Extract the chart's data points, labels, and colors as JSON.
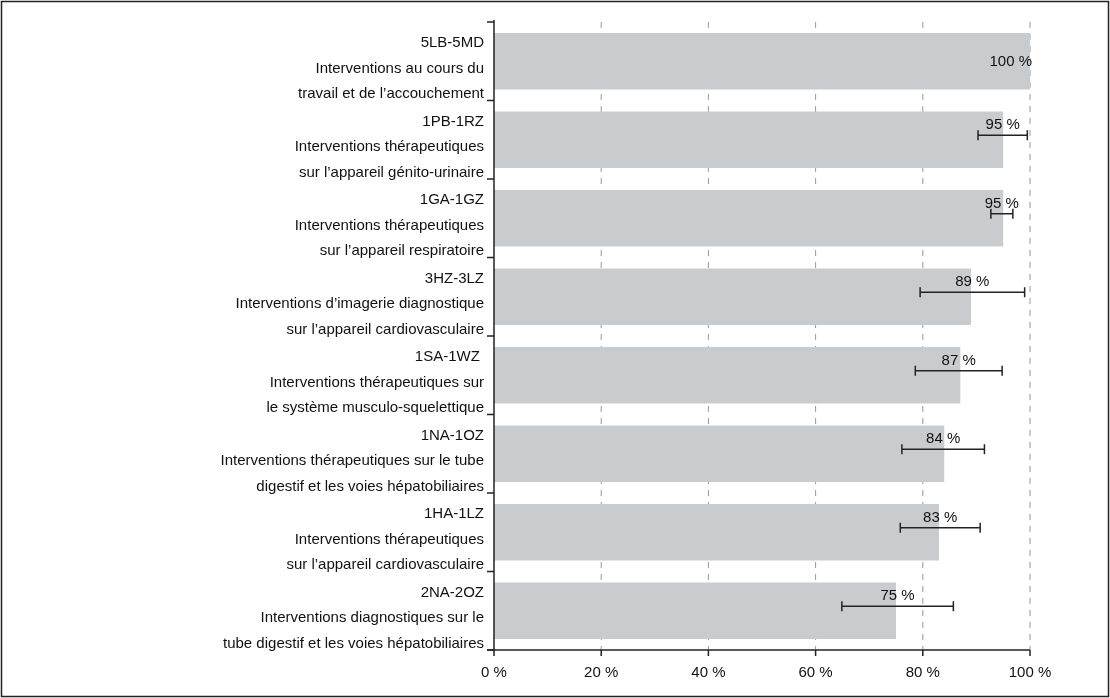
{
  "chart_data": {
    "type": "bar",
    "orientation": "horizontal",
    "categories": [
      "5LB-5MD\nInterventions au cours du\ntravail et de l’accouchement",
      "1PB-1RZ\nInterventions thérapeutiques\nsur l’appareil génito-urinaire",
      "1GA-1GZ\nInterventions thérapeutiques\nsur l’appareil respiratoire",
      "3HZ-3LZ\nInterventions d’imagerie diagnostique\nsur l’appareil cardiovasculaire",
      "1SA-1WZ \nInterventions thérapeutiques sur\nle système musculo-squelettique",
      "1NA-1OZ\nInterventions thérapeutiques sur le tube\ndigestif et les voies hépatobiliaires",
      "1HA-1LZ\nInterventions thérapeutiques\nsur l’appareil cardiovasculaire",
      "2NA-2OZ\nInterventions diagnostiques sur le\ntube digestif et les voies hépatobiliaires"
    ],
    "values": [
      100,
      95,
      95,
      89,
      87,
      84,
      83,
      75
    ],
    "value_labels": [
      "100 %",
      "95 %",
      "95 %",
      "89 %",
      "87 %",
      "84 %",
      "83 %",
      "75 %"
    ],
    "errors": [
      null,
      [
        90.3,
        99.5
      ],
      [
        92.7,
        96.8
      ],
      [
        79.5,
        99
      ],
      [
        78.6,
        94.8
      ],
      [
        76.1,
        91.5
      ],
      [
        75.8,
        90.7
      ],
      [
        64.9,
        85.7
      ]
    ],
    "color": "#c9ccce",
    "xlim": [
      0,
      100
    ],
    "xticks": [
      {
        "value": 0,
        "label": "0 %"
      },
      {
        "value": 20,
        "label": "20 %"
      },
      {
        "value": 40,
        "label": "40 %"
      },
      {
        "value": 60,
        "label": "60 %"
      },
      {
        "value": 80,
        "label": "80 %"
      },
      {
        "value": 100,
        "label": "100 %"
      }
    ],
    "grid": "x"
  }
}
